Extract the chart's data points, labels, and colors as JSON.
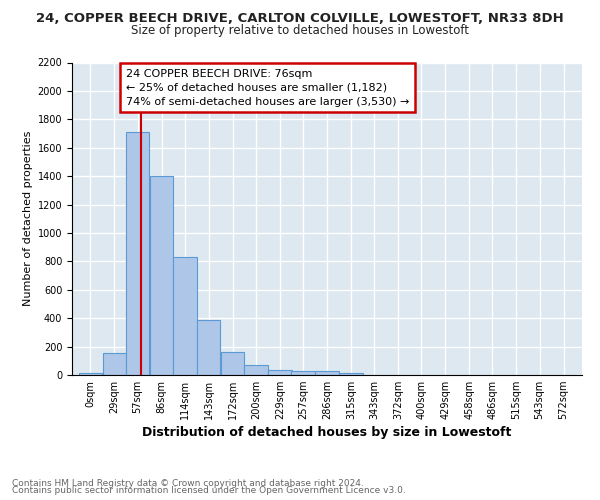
{
  "title1": "24, COPPER BEECH DRIVE, CARLTON COLVILLE, LOWESTOFT, NR33 8DH",
  "title2": "Size of property relative to detached houses in Lowestoft",
  "xlabel": "Distribution of detached houses by size in Lowestoft",
  "ylabel": "Number of detached properties",
  "bar_labels": [
    "0sqm",
    "29sqm",
    "57sqm",
    "86sqm",
    "114sqm",
    "143sqm",
    "172sqm",
    "200sqm",
    "229sqm",
    "257sqm",
    "286sqm",
    "315sqm",
    "343sqm",
    "372sqm",
    "400sqm",
    "429sqm",
    "458sqm",
    "486sqm",
    "515sqm",
    "543sqm",
    "572sqm"
  ],
  "bar_values": [
    15,
    155,
    1710,
    1400,
    830,
    385,
    165,
    70,
    35,
    30,
    30,
    15,
    0,
    0,
    0,
    0,
    0,
    0,
    0,
    0,
    0
  ],
  "bar_color": "#aec6e8",
  "bar_edge_color": "#5b9bd5",
  "ylim": [
    0,
    2200
  ],
  "yticks": [
    0,
    200,
    400,
    600,
    800,
    1000,
    1200,
    1400,
    1600,
    1800,
    2000,
    2200
  ],
  "vline_x": 76,
  "vline_color": "#cc0000",
  "annotation_line1": "24 COPPER BEECH DRIVE: 76sqm",
  "annotation_line2": "← 25% of detached houses are smaller (1,182)",
  "annotation_line3": "74% of semi-detached houses are larger (3,530) →",
  "box_color": "#ffffff",
  "box_edge_color": "#cc0000",
  "footer1": "Contains HM Land Registry data © Crown copyright and database right 2024.",
  "footer2": "Contains public sector information licensed under the Open Government Licence v3.0.",
  "fig_background_color": "#ffffff",
  "background_color": "#dde8f0",
  "grid_color": "#ffffff",
  "title1_fontsize": 9.5,
  "title2_fontsize": 8.5,
  "xlabel_fontsize": 9,
  "ylabel_fontsize": 8,
  "tick_fontsize": 7,
  "annotation_fontsize": 8,
  "footer_fontsize": 6.5,
  "x_starts": [
    0,
    29,
    57,
    86,
    114,
    143,
    172,
    200,
    229,
    257,
    286,
    315,
    343,
    372,
    400,
    429,
    458,
    486,
    515,
    543,
    572
  ],
  "bar_width": 28.5
}
